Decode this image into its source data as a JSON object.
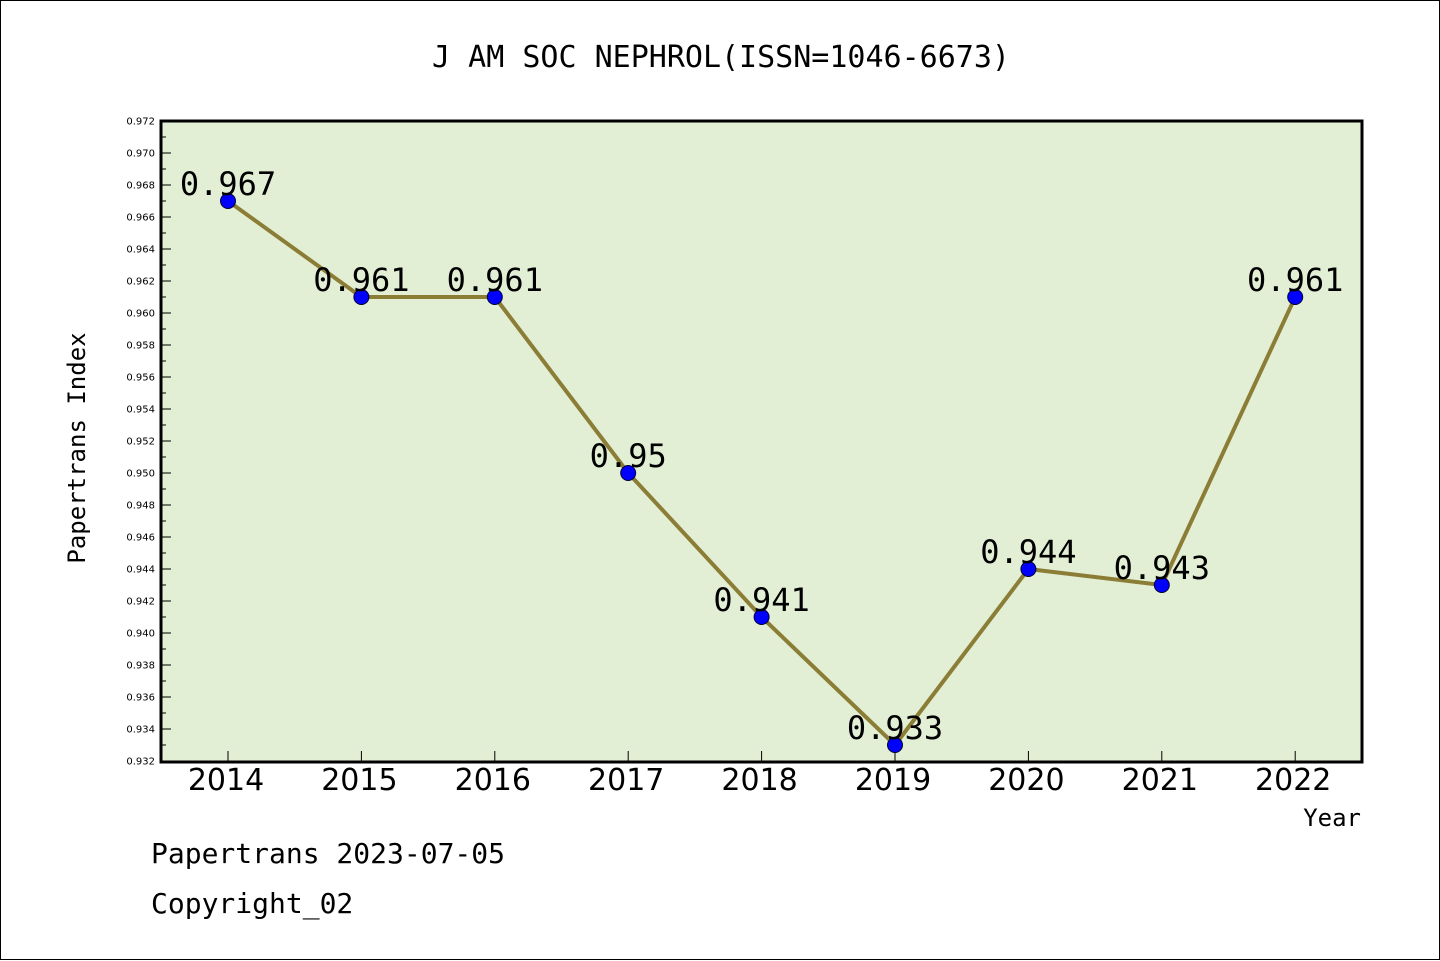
{
  "chart_data": {
    "type": "line",
    "title": "J AM SOC NEPHROL(ISSN=1046-6673)",
    "xlabel": "Year",
    "ylabel": "Papertrans Index",
    "categories": [
      "2014",
      "2015",
      "2016",
      "2017",
      "2018",
      "2019",
      "2020",
      "2021",
      "2022"
    ],
    "values": [
      0.967,
      0.961,
      0.961,
      0.95,
      0.941,
      0.933,
      0.944,
      0.943,
      0.961
    ],
    "data_labels": [
      "0.967",
      "0.961",
      "0.961",
      "0.95",
      "0.941",
      "0.933",
      "0.944",
      "0.943",
      "0.961"
    ],
    "ylim": [
      0.932,
      0.972
    ],
    "yticks": [
      "0.932",
      "0.934",
      "0.936",
      "0.938",
      "0.940",
      "0.942",
      "0.944",
      "0.946",
      "0.948",
      "0.950",
      "0.952",
      "0.954",
      "0.956",
      "0.958",
      "0.960",
      "0.962",
      "0.964",
      "0.966",
      "0.968",
      "0.970",
      "0.972"
    ],
    "grid": false,
    "colors": {
      "plot_background": "#e2efd5",
      "line": "#8b7d35",
      "marker": "#0000ff"
    }
  },
  "footer": {
    "line1": "Papertrans 2023-07-05",
    "line2": "Copyright_02"
  }
}
